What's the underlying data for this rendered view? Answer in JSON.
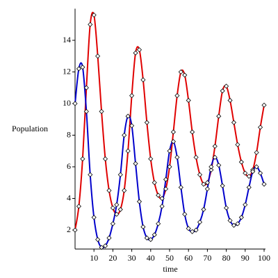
{
  "chart_data": {
    "type": "line",
    "xlabel": "time",
    "ylabel": "Population",
    "x": [
      0,
      2,
      4,
      6,
      8,
      10,
      12,
      14,
      16,
      18,
      20,
      22,
      24,
      26,
      28,
      30,
      32,
      34,
      36,
      38,
      40,
      42,
      44,
      46,
      48,
      50,
      52,
      54,
      56,
      58,
      60,
      62,
      64,
      66,
      68,
      70,
      72,
      74,
      76,
      78,
      80,
      82,
      84,
      86,
      88,
      90,
      92,
      94,
      96,
      98,
      100
    ],
    "series": [
      {
        "color": "#e00000",
        "values": [
          2,
          3.5,
          6.5,
          11,
          15,
          15.6,
          13,
          9.5,
          6.5,
          4.5,
          3.4,
          3.0,
          3.3,
          4.5,
          7,
          10.5,
          13.2,
          13.4,
          11.5,
          8.8,
          6.5,
          5,
          4.2,
          4.0,
          4.6,
          6,
          8.2,
          10.5,
          12,
          11.8,
          10.2,
          8.2,
          6.6,
          5.5,
          4.9,
          5.0,
          5.8,
          7.3,
          9.2,
          10.8,
          11.1,
          10.2,
          8.8,
          7.4,
          6.3,
          5.6,
          5.4,
          5.8,
          6.9,
          8.5,
          9.9
        ]
      },
      {
        "color": "#0000cc",
        "values": [
          10,
          12.2,
          12.3,
          9.5,
          5.5,
          2.8,
          1.4,
          0.9,
          1.0,
          1.5,
          2.4,
          3.6,
          5.5,
          8.0,
          9.2,
          8.6,
          6.2,
          3.8,
          2.2,
          1.5,
          1.4,
          1.7,
          2.4,
          3.5,
          5.2,
          7.0,
          7.6,
          6.6,
          4.7,
          3.0,
          2.1,
          1.9,
          2.0,
          2.5,
          3.3,
          4.6,
          6.0,
          6.6,
          6.1,
          4.8,
          3.4,
          2.6,
          2.3,
          2.4,
          2.8,
          3.6,
          4.7,
          5.7,
          6.0,
          5.6,
          4.9
        ]
      }
    ],
    "marker": "diamond",
    "xlim": [
      0,
      100
    ],
    "xticks": [
      10,
      20,
      30,
      40,
      50,
      60,
      70,
      80,
      90,
      100
    ],
    "ylim": [
      0.8,
      16
    ],
    "yticks": [
      2,
      4,
      6,
      8,
      10,
      12,
      14
    ]
  }
}
